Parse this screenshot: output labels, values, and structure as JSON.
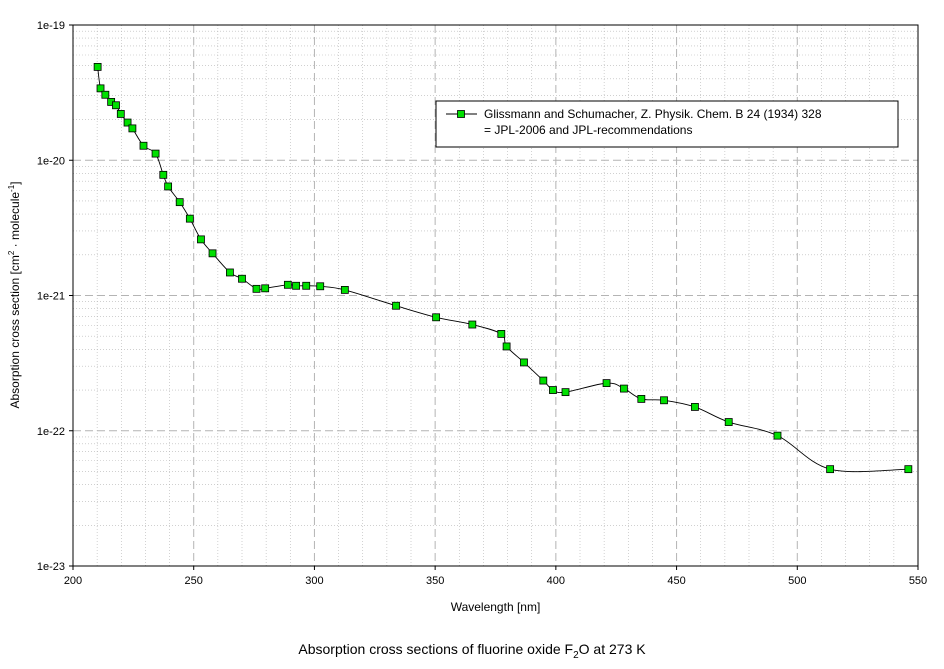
{
  "chart_data": {
    "type": "scatter",
    "caption": {
      "prefix": "Absorption cross sections of fluorine oxide F",
      "sub": "2",
      "suffix": "O at 273 K"
    },
    "xlabel": "Wavelength [nm]",
    "ylabel": {
      "prefix": "Absorption cross section [cm",
      "sup1": "2",
      "middle": " · molecule",
      "sup2": "-1",
      "suffix": "]"
    },
    "xlim": [
      200,
      550
    ],
    "ylim": [
      1e-23,
      1e-19
    ],
    "yscale": "log",
    "grid": true,
    "legend_position": "top-right",
    "xticks": [
      "200",
      "250",
      "300",
      "350",
      "400",
      "450",
      "500",
      "550"
    ],
    "yticks": [
      "1e-23",
      "1e-22",
      "1e-21",
      "1e-20",
      "1e-19"
    ],
    "colors": {
      "marker_fill": "#00e000",
      "marker_edge": "#000000",
      "line": "#000000",
      "grid": "#b4b4b4"
    },
    "series": [
      {
        "name": "Glissmann and Schumacher, Z. Physik. Chem. B 24 (1934) 328",
        "name_line2": "= JPL-2006 and JPL-recommendations",
        "x": [
          210.2,
          211.4,
          213.4,
          215.8,
          217.8,
          219.8,
          222.6,
          224.6,
          229.2,
          234.2,
          237.4,
          239.4,
          244.2,
          248.4,
          253.0,
          257.8,
          265.0,
          270.0,
          276.0,
          279.6,
          289.0,
          292.4,
          296.6,
          302.4,
          312.6,
          333.8,
          350.4,
          365.4,
          377.4,
          379.6,
          386.8,
          394.8,
          398.8,
          404.0,
          421.0,
          428.2,
          435.4,
          444.8,
          457.6,
          471.6,
          491.8,
          513.6,
          546.0
        ],
        "y": [
          4.9e-20,
          3.4e-20,
          3.05e-20,
          2.7e-20,
          2.55e-20,
          2.2e-20,
          1.9e-20,
          1.72e-20,
          1.28e-20,
          1.12e-20,
          7.8e-21,
          6.4e-21,
          4.9e-21,
          3.7e-21,
          2.6e-21,
          2.05e-21,
          1.48e-21,
          1.33e-21,
          1.12e-21,
          1.13e-21,
          1.2e-21,
          1.18e-21,
          1.18e-21,
          1.17e-21,
          1.1e-21,
          8.4e-22,
          6.9e-22,
          6.1e-22,
          5.2e-22,
          4.2e-22,
          3.2e-22,
          2.35e-22,
          2e-22,
          1.93e-22,
          2.25e-22,
          2.05e-22,
          1.72e-22,
          1.68e-22,
          1.5e-22,
          1.16e-22,
          9.2e-23,
          5.2e-23,
          5.2e-23
        ]
      }
    ]
  }
}
